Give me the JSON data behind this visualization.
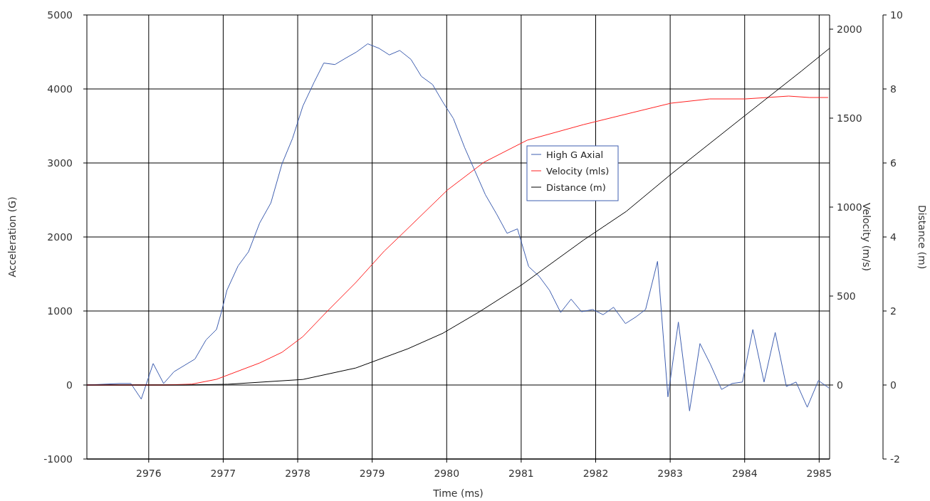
{
  "chart_data": {
    "type": "line",
    "xlabel": "Time (ms)",
    "ylabel": "Acceleration (G)",
    "y2label": "Velocity (m/s)",
    "y3label": "Distance (m)",
    "xlim": [
      2975.17,
      2985.14
    ],
    "xticks": [
      2976,
      2977,
      2978,
      2979,
      2980,
      2981,
      2982,
      2983,
      2984,
      2985
    ],
    "ylim": [
      -1000,
      5000
    ],
    "yticks": [
      -1000,
      0,
      1000,
      2000,
      3000,
      4000,
      5000
    ],
    "y2lim": [
      -416,
      2080
    ],
    "y2ticks": [
      0,
      500,
      1000,
      1500,
      2000
    ],
    "y3lim": [
      -2,
      10
    ],
    "y3ticks": [
      -2,
      0,
      2,
      4,
      6,
      8,
      10
    ],
    "grid": true,
    "legend": "top",
    "line_style": "solid",
    "marker": "none",
    "series": [
      {
        "name": "High G Axial",
        "color": "#3f5fb0",
        "x": [
          2975.17,
          2975.61,
          2975.76,
          2975.9,
          2976.06,
          2976.2,
          2976.34,
          2976.62,
          2976.77,
          2976.91,
          2976.98,
          2977.05,
          2977.2,
          2977.34,
          2977.49,
          2977.64,
          2977.79,
          2977.93,
          2978.07,
          2978.22,
          2978.35,
          2978.5,
          2978.65,
          2978.79,
          2978.94,
          2979.09,
          2979.23,
          2979.37,
          2979.52,
          2979.66,
          2979.81,
          2979.95,
          2980.09,
          2980.24,
          2980.38,
          2980.52,
          2980.67,
          2980.81,
          2980.95,
          2981.1,
          2981.24,
          2981.38,
          2981.53,
          2981.67,
          2981.81,
          2981.96,
          2982.1,
          2982.24,
          2982.4,
          2982.54,
          2982.67,
          2982.83,
          2982.97,
          2983.11,
          2983.26,
          2983.4,
          2983.54,
          2983.69,
          2983.83,
          2983.97,
          2984.11,
          2984.26,
          2984.41,
          2984.56,
          2984.69,
          2984.84,
          2984.99,
          2985.13
        ],
        "values": [
          0,
          20,
          20,
          -190,
          290,
          20,
          180,
          350,
          610,
          750,
          1000,
          1280,
          1610,
          1800,
          2190,
          2460,
          2990,
          3330,
          3770,
          4090,
          4350,
          4330,
          4420,
          4500,
          4610,
          4550,
          4460,
          4520,
          4400,
          4170,
          4060,
          3820,
          3600,
          3210,
          2890,
          2570,
          2310,
          2050,
          2110,
          1600,
          1470,
          1280,
          980,
          1160,
          990,
          1020,
          950,
          1050,
          830,
          920,
          1020,
          1670,
          -160,
          850,
          -350,
          560,
          280,
          -60,
          20,
          40,
          750,
          40,
          710,
          -20,
          40,
          -300,
          60,
          -40
        ]
      },
      {
        "name": "Velocity (mls)",
        "color": "#ff2020",
        "axis": "y2",
        "x": [
          2975.17,
          2976.2,
          2976.58,
          2976.91,
          2977.49,
          2977.79,
          2978.07,
          2978.4,
          2978.78,
          2979.16,
          2979.36,
          2980.01,
          2980.5,
          2981.08,
          2981.84,
          2982.54,
          2983.01,
          2983.53,
          2984.01,
          2984.59,
          2984.87,
          2985.12
        ],
        "values": [
          0,
          0,
          5,
          32,
          124,
          184,
          272,
          416,
          576,
          752,
          832,
          1096,
          1252,
          1376,
          1464,
          1536,
          1584,
          1608,
          1608,
          1624,
          1616,
          1616
        ]
      },
      {
        "name": "Distance (m)",
        "color": "#000000",
        "axis": "y3",
        "x": [
          2975.17,
          2976.49,
          2977.06,
          2978.07,
          2978.78,
          2979.48,
          2979.95,
          2980.44,
          2981.01,
          2981.84,
          2982.41,
          2983.02,
          2984.01,
          2984.76,
          2985.14
        ],
        "values": [
          0,
          0,
          0.02,
          0.15,
          0.46,
          0.98,
          1.4,
          1.98,
          2.71,
          3.92,
          4.69,
          5.71,
          7.29,
          8.48,
          9.1
        ]
      }
    ]
  }
}
